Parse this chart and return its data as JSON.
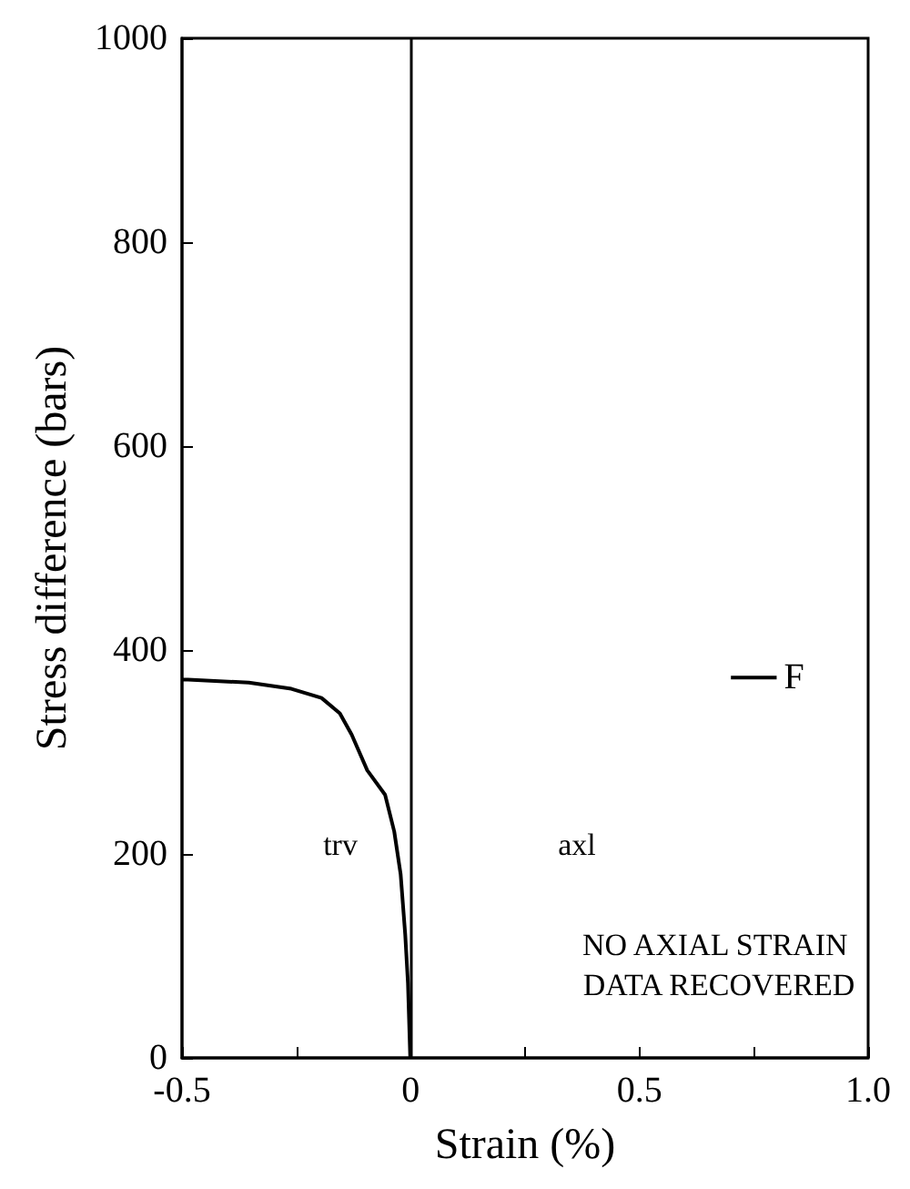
{
  "chart_data": {
    "type": "line",
    "xlabel": "Strain (%)",
    "ylabel": "Stress difference (bars)",
    "xlim": [
      -0.5,
      1.0
    ],
    "xticks": [
      -0.5,
      {
        "value": -0.25,
        "label": null
      },
      0,
      {
        "value": 0.25,
        "label": null
      },
      0.5,
      {
        "value": 0.75,
        "label": null
      },
      {
        "value": 1.0,
        "label": "1.0"
      }
    ],
    "ylim": [
      0,
      1000
    ],
    "yticks": [
      0,
      200,
      400,
      600,
      800,
      1000
    ],
    "grid": false,
    "marker": "none",
    "line_style": "solid",
    "series": [
      {
        "color": "#000000",
        "x": [
          -0.5,
          -0.487,
          -0.354,
          -0.261,
          -0.195,
          -0.155,
          -0.129,
          -0.095,
          -0.056,
          -0.036,
          -0.022,
          -0.012,
          -0.006,
          -0.001
        ],
        "values": [
          371,
          371,
          368,
          362,
          353,
          338,
          317,
          282,
          258,
          222,
          180,
          121,
          73,
          0
        ]
      },
      {
        "color": "#000000",
        "x": [
          0.7,
          0.8
        ],
        "values": [
          373,
          373
        ]
      }
    ],
    "ref_lines": [
      {
        "axis": "x",
        "value": 0,
        "color": "#000000"
      }
    ],
    "annotations": [
      "trv",
      "axl",
      {
        "text": "F",
        "x": 0.8,
        "y": 373
      },
      "NO AXIAL STRAIN DATA RECOVERED"
    ]
  }
}
